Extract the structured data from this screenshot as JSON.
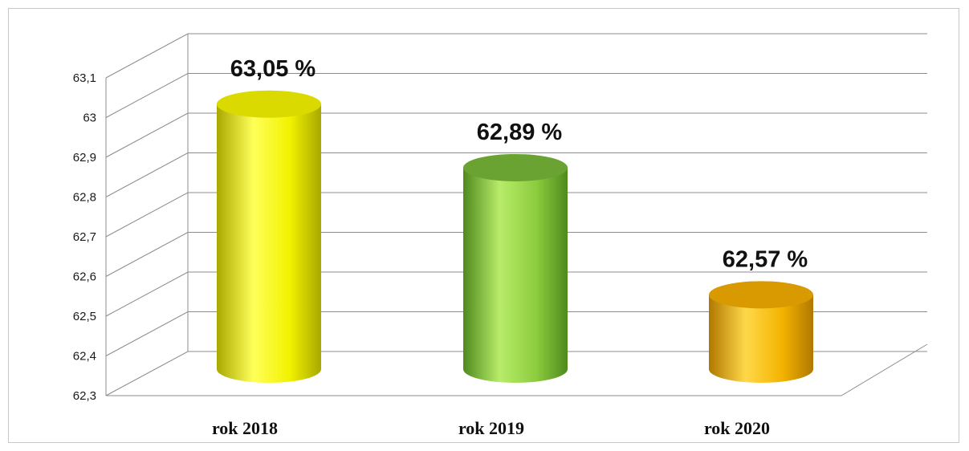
{
  "chart_data": {
    "type": "bar",
    "categories": [
      "rok 2018",
      "rok 2019",
      "rok 2020"
    ],
    "values": [
      63.05,
      62.89,
      62.57
    ],
    "data_labels": [
      "63,05 %",
      "62,89 %",
      "62,57 %"
    ],
    "colors": [
      "#f2f200",
      "#8ccc3e",
      "#f4b400"
    ],
    "ylim": [
      62.3,
      63.1
    ],
    "y_ticks": [
      62.3,
      62.4,
      62.5,
      62.6,
      62.7,
      62.8,
      62.9,
      63.0,
      63.1
    ],
    "y_tick_labels": [
      "62,3",
      "62,4",
      "62,5",
      "62,6",
      "62,7",
      "62,8",
      "62,9",
      "63",
      "63,1"
    ],
    "grid": true,
    "style": "3d-cylinder"
  }
}
